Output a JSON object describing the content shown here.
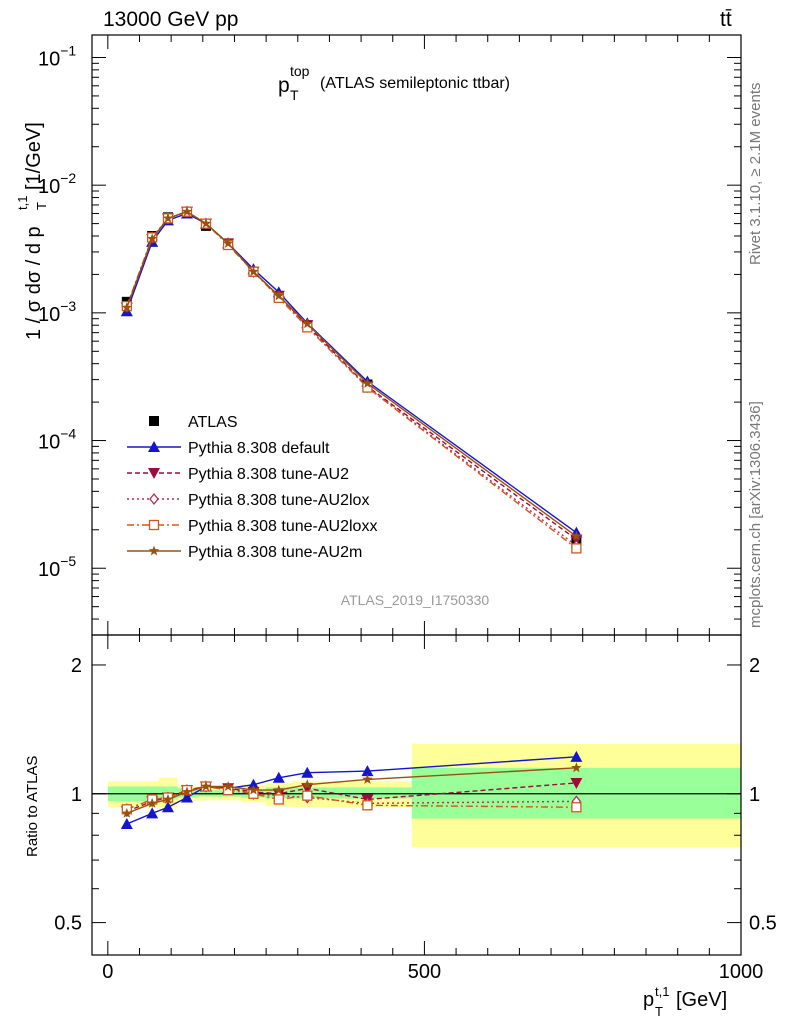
{
  "header": {
    "beam": "13000 GeV pp",
    "process": "tt̄",
    "plot_title_main": "p",
    "plot_title_sup": "top",
    "plot_title_sub": "T",
    "plot_title_rest": "(ATLAS semileptonic ttbar)",
    "analysis_id": "ATLAS_2019_I1750330",
    "side_rivet": "Rivet 3.1.10, ≥ 2.1M events",
    "side_mcplots": "mcplots.cern.ch [arXiv:1306.3436]"
  },
  "chart_data": [
    {
      "type": "line",
      "panel": "main",
      "title": "p_T^top (ATLAS semileptonic ttbar)",
      "ylabel": "1 / σ dσ / d p_T^{t,1} [1/GeV]",
      "yscale": "log",
      "ylim": [
        3e-06,
        0.15
      ],
      "xlim": [
        -25,
        1000
      ],
      "ytick_labels": [
        {
          "value": 0.1,
          "mant": "10",
          "exp": "−1"
        },
        {
          "value": 0.01,
          "mant": "10",
          "exp": "−2"
        },
        {
          "value": 0.001,
          "mant": "10",
          "exp": "−3"
        },
        {
          "value": 0.0001,
          "mant": "10",
          "exp": "−4"
        },
        {
          "value": 1e-05,
          "mant": "10",
          "exp": "−5"
        }
      ],
      "x": [
        30,
        70,
        95,
        125,
        155,
        190,
        230,
        270,
        315,
        410,
        740
      ],
      "legend_position": "lower-left",
      "series": [
        {
          "name": "ATLAS",
          "color": "#000000",
          "marker": "square",
          "dash": "none",
          "values": [
            0.00122,
            0.004,
            0.0056,
            0.0061,
            0.0048,
            0.0034,
            0.0021,
            0.00134,
            0.0008,
            0.000275,
            1.58e-05
          ]
        },
        {
          "name": "Pythia 8.308 default",
          "color": "#1515cc",
          "marker": "triangle-up",
          "dash": "none",
          "values": [
            0.00103,
            0.0036,
            0.0053,
            0.006,
            0.005,
            0.0035,
            0.0022,
            0.00145,
            0.00083,
            0.00029,
            1.9e-05
          ]
        },
        {
          "name": "Pythia 8.308 tune-AU2",
          "color": "#9e0a3c",
          "marker": "triangle-down",
          "dash": "5,3",
          "values": [
            0.0011,
            0.0038,
            0.0055,
            0.0062,
            0.005,
            0.0035,
            0.0021,
            0.00136,
            0.0008,
            0.000265,
            1.68e-05
          ]
        },
        {
          "name": "Pythia 8.308 tune-AU2lox",
          "color": "#b52a4a",
          "marker": "diamond-open",
          "dash": "2,3",
          "values": [
            0.00112,
            0.0039,
            0.0055,
            0.0062,
            0.005,
            0.0035,
            0.0021,
            0.00134,
            0.00078,
            0.000262,
            1.5e-05
          ]
        },
        {
          "name": "Pythia 8.308 tune-AU2loxx",
          "color": "#d0581f",
          "marker": "square-open",
          "dash": "7,3,2,3",
          "values": [
            0.00113,
            0.0039,
            0.0055,
            0.0062,
            0.005,
            0.0034,
            0.0021,
            0.00131,
            0.00077,
            0.00026,
            1.43e-05
          ]
        },
        {
          "name": "Pythia 8.308 tune-AU2m",
          "color": "#995010",
          "marker": "star",
          "dash": "none",
          "values": [
            0.0011,
            0.0038,
            0.0055,
            0.0062,
            0.005,
            0.0035,
            0.0021,
            0.00136,
            0.00082,
            0.00028,
            1.78e-05
          ]
        }
      ]
    },
    {
      "type": "line",
      "panel": "ratio",
      "ylabel": "Ratio to ATLAS",
      "yscale": "log",
      "ylim": [
        0.42,
        2.35
      ],
      "xlim": [
        -25,
        1000
      ],
      "xlabel": "p_T^{t,1} [GeV]",
      "ytick_labels": [
        {
          "value": 0.5,
          "label": "0.5"
        },
        {
          "value": 1,
          "label": "1"
        },
        {
          "value": 2,
          "label": "2"
        }
      ],
      "xtick_labels": [
        {
          "value": 0,
          "label": "0"
        },
        {
          "value": 500,
          "label": "500"
        },
        {
          "value": 1000,
          "label": "1000"
        }
      ],
      "uncertainty_bands": {
        "bin_edges": [
          0,
          80,
          110,
          140,
          170,
          210,
          250,
          290,
          480,
          1000
        ],
        "stat_lo": [
          0.96,
          0.97,
          0.98,
          0.985,
          0.985,
          0.98,
          0.975,
          0.975,
          0.875,
          0.875
        ],
        "stat_hi": [
          1.04,
          1.04,
          1.03,
          1.02,
          1.02,
          1.025,
          1.035,
          1.035,
          1.15,
          1.15
        ],
        "total_lo": [
          0.93,
          0.93,
          0.96,
          0.965,
          0.965,
          0.955,
          0.935,
          0.93,
          0.75,
          0.75
        ],
        "total_hi": [
          1.07,
          1.09,
          1.04,
          1.035,
          1.04,
          1.05,
          1.06,
          1.07,
          1.31,
          1.31
        ],
        "stat_color": "#99ff99",
        "total_color": "#ffff99"
      },
      "x": [
        30,
        70,
        95,
        125,
        155,
        190,
        230,
        270,
        315,
        410,
        740
      ],
      "series": [
        {
          "name": "Pythia 8.308 default",
          "color": "#1515cc",
          "marker": "triangle-up",
          "dash": "none",
          "values": [
            0.85,
            0.9,
            0.93,
            0.98,
            1.04,
            1.03,
            1.05,
            1.09,
            1.12,
            1.13,
            1.22
          ]
        },
        {
          "name": "Pythia 8.308 tune-AU2",
          "color": "#9e0a3c",
          "marker": "triangle-down",
          "dash": "5,3",
          "values": [
            0.91,
            0.96,
            0.98,
            1.02,
            1.04,
            1.03,
            1.01,
            1.0,
            1.03,
            0.97,
            1.06
          ]
        },
        {
          "name": "Pythia 8.308 tune-AU2lox",
          "color": "#b52a4a",
          "marker": "diamond-open",
          "dash": "2,3",
          "values": [
            0.92,
            0.97,
            0.98,
            1.02,
            1.04,
            1.03,
            1.0,
            0.99,
            0.98,
            0.95,
            0.96
          ]
        },
        {
          "name": "Pythia 8.308 tune-AU2loxx",
          "color": "#d0581f",
          "marker": "square-open",
          "dash": "7,3,2,3",
          "values": [
            0.92,
            0.97,
            0.98,
            1.02,
            1.04,
            1.02,
            1.0,
            0.97,
            0.99,
            0.94,
            0.93
          ]
        },
        {
          "name": "Pythia 8.308 tune-AU2m",
          "color": "#995010",
          "marker": "star",
          "dash": "none",
          "values": [
            0.9,
            0.95,
            0.97,
            1.01,
            1.04,
            1.04,
            1.02,
            1.02,
            1.05,
            1.08,
            1.15
          ]
        }
      ]
    }
  ]
}
